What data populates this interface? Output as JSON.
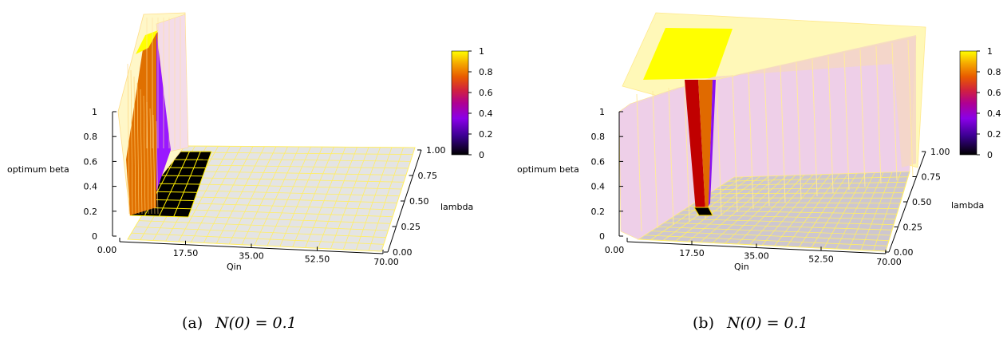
{
  "chart_data": [
    {
      "type": "surface3d",
      "panel_label": "(a)",
      "caption_math": "N(0) = 0.1",
      "xlabel": "Qin",
      "ylabel": "lambda",
      "zlabel": "optimum beta",
      "x_ticks": [
        "0.00",
        "17.50",
        "35.00",
        "52.50",
        "70.00"
      ],
      "y_ticks": [
        "0.00",
        "0.25",
        "0.50",
        "0.75",
        "1.00"
      ],
      "z_ticks": [
        "0",
        "0.2",
        "0.4",
        "0.6",
        "0.8",
        "1"
      ],
      "colorbar_ticks": [
        "0",
        "0.2",
        "0.4",
        "0.6",
        "0.8",
        "1"
      ],
      "xlim": [
        0,
        70
      ],
      "ylim": [
        0,
        1
      ],
      "zlim": [
        0,
        1
      ],
      "colormap": [
        "#000000",
        "#5a00b0",
        "#a000ff",
        "#c0206f",
        "#e04a10",
        "#f07a00",
        "#ffff00"
      ],
      "surface_color": "#e6e6e6",
      "grid_color": "#ffee66",
      "series": [
        {
          "lambda": 0.0,
          "beta": [
            1,
            0,
            0,
            0,
            0,
            0,
            0,
            0,
            0,
            0,
            0,
            0,
            0,
            0,
            0,
            0,
            0,
            0,
            0,
            0,
            0
          ]
        },
        {
          "lambda": 0.25,
          "beta": [
            1,
            0,
            0,
            0,
            0,
            0,
            0,
            0,
            0,
            0,
            0,
            0,
            0,
            0,
            0,
            0,
            0,
            0,
            0,
            0,
            0
          ]
        },
        {
          "lambda": 0.5,
          "beta": [
            1,
            0.6,
            0,
            0,
            0,
            0,
            0,
            0,
            0,
            0,
            0,
            0,
            0,
            0,
            0,
            0,
            0,
            0,
            0,
            0,
            0
          ]
        },
        {
          "lambda": 0.75,
          "beta": [
            1,
            0.85,
            0.5,
            0,
            0,
            0,
            0,
            0,
            0,
            0,
            0,
            0,
            0,
            0,
            0,
            0,
            0,
            0,
            0,
            0,
            0
          ]
        },
        {
          "lambda": 1.0,
          "beta": [
            1,
            1,
            0.85,
            0,
            0,
            0,
            0,
            0,
            0,
            0,
            0,
            0,
            0,
            0,
            0,
            0,
            0,
            0,
            0,
            0,
            0
          ]
        }
      ]
    },
    {
      "type": "surface3d",
      "panel_label": "(b)",
      "caption_math": "N(0) = 0.1",
      "xlabel": "Qin",
      "ylabel": "lambda",
      "zlabel": "optimum beta",
      "x_ticks": [
        "0.00",
        "17.50",
        "35.00",
        "52.50",
        "70.00"
      ],
      "y_ticks": [
        "0.00",
        "0.25",
        "0.50",
        "0.75",
        "1.00"
      ],
      "z_ticks": [
        "0",
        "0.2",
        "0.4",
        "0.6",
        "0.8",
        "1"
      ],
      "colorbar_ticks": [
        "0",
        "0.2",
        "0.4",
        "0.6",
        "0.8",
        "1"
      ],
      "xlim": [
        0,
        70
      ],
      "ylim": [
        0,
        1
      ],
      "zlim": [
        0,
        1
      ],
      "colormap": [
        "#000000",
        "#5a00b0",
        "#a000ff",
        "#c0206f",
        "#e04a10",
        "#f07a00",
        "#ffff00"
      ],
      "surface_color": "#e6e6e6",
      "grid_color": "#ffee66",
      "series": [
        {
          "lambda": 0.0,
          "beta": [
            1,
            1,
            1,
            0,
            0,
            0,
            0,
            0,
            0,
            0,
            0,
            0,
            0,
            0,
            0,
            0,
            0,
            0,
            0,
            0,
            0
          ]
        },
        {
          "lambda": 0.25,
          "beta": [
            1,
            1,
            1,
            1,
            0.6,
            0,
            0,
            0,
            0,
            0,
            0,
            0,
            0,
            0,
            0,
            0,
            0,
            0,
            0,
            0,
            0
          ]
        },
        {
          "lambda": 0.5,
          "beta": [
            1,
            1,
            1,
            1,
            0.9,
            0.8,
            1,
            1,
            0,
            0,
            0,
            0,
            0,
            0,
            0,
            0,
            0,
            0,
            0,
            0,
            0
          ]
        },
        {
          "lambda": 0.75,
          "beta": [
            1,
            1,
            1,
            1,
            1,
            1,
            1,
            1,
            1,
            1,
            1,
            1,
            1,
            1,
            0,
            0,
            0,
            0,
            0,
            0,
            0
          ]
        },
        {
          "lambda": 1.0,
          "beta": [
            1,
            1,
            1,
            1,
            1,
            1,
            1,
            1,
            1,
            1,
            1,
            1,
            1,
            1,
            1,
            1,
            1,
            1,
            1,
            1,
            1
          ]
        }
      ]
    }
  ]
}
